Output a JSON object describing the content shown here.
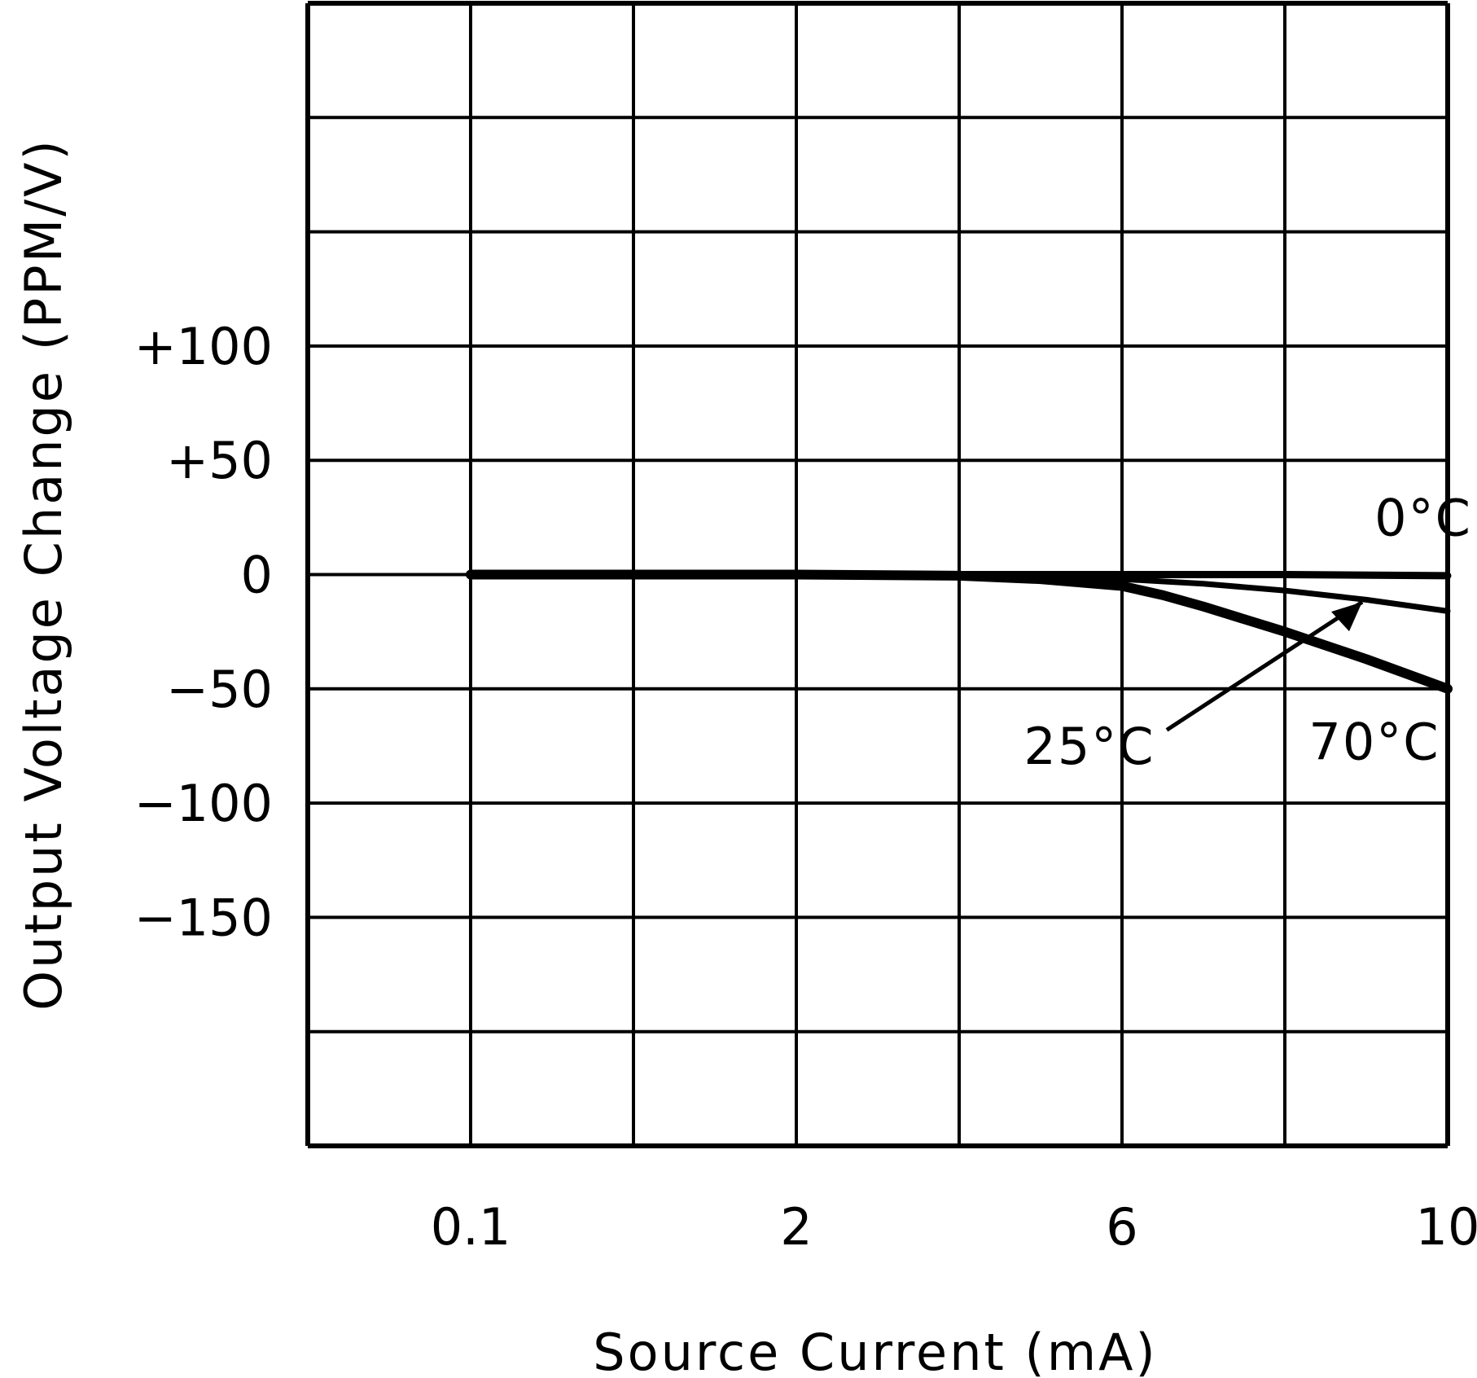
{
  "chart_data": {
    "type": "line",
    "title": "",
    "xlabel": "Source Current (mA)",
    "ylabel": "Output Voltage Change (PPM/V)",
    "xlim": [
      0,
      10
    ],
    "ylim": [
      -250,
      250
    ],
    "x_tick_labels": [
      {
        "value": 0.1,
        "label": "0.1"
      },
      {
        "value": 2,
        "label": "2"
      },
      {
        "value": 6,
        "label": "6"
      },
      {
        "value": 10,
        "label": "10"
      }
    ],
    "y_tick_labels": [
      {
        "value": 100,
        "label": "+100"
      },
      {
        "value": 50,
        "label": "+50"
      },
      {
        "value": 0,
        "label": "0"
      },
      {
        "value": -50,
        "label": "−50"
      },
      {
        "value": -100,
        "label": "−100"
      },
      {
        "value": -150,
        "label": "−150"
      }
    ],
    "grid": true,
    "grid_columns": 7,
    "grid_rows": 10,
    "colors": {
      "line": "#000000",
      "grid": "#000000",
      "background": "#ffffff"
    },
    "series": [
      {
        "name": "0°C",
        "x": [
          0.1,
          2,
          4,
          6,
          8,
          10
        ],
        "y": [
          0,
          0,
          0,
          0,
          0,
          -0.5
        ]
      },
      {
        "name": "25°C",
        "x": [
          0.1,
          2,
          4,
          6,
          7,
          8,
          9,
          10
        ],
        "y": [
          0,
          0,
          -0.5,
          -2,
          -4,
          -7,
          -11,
          -16
        ]
      },
      {
        "name": "70°C",
        "x": [
          0.1,
          2,
          4,
          5,
          6,
          6.5,
          7,
          8,
          9,
          10
        ],
        "y": [
          0,
          0,
          -0.5,
          -2,
          -5,
          -9,
          -14,
          -25,
          -37,
          -50
        ]
      }
    ],
    "annotations": [
      {
        "text": "0°C",
        "x": 9.7,
        "y": 25
      },
      {
        "text": "25°C",
        "x": 5.6,
        "y": -75
      },
      {
        "text": "70°C",
        "x": 9.1,
        "y": -73
      }
    ]
  }
}
